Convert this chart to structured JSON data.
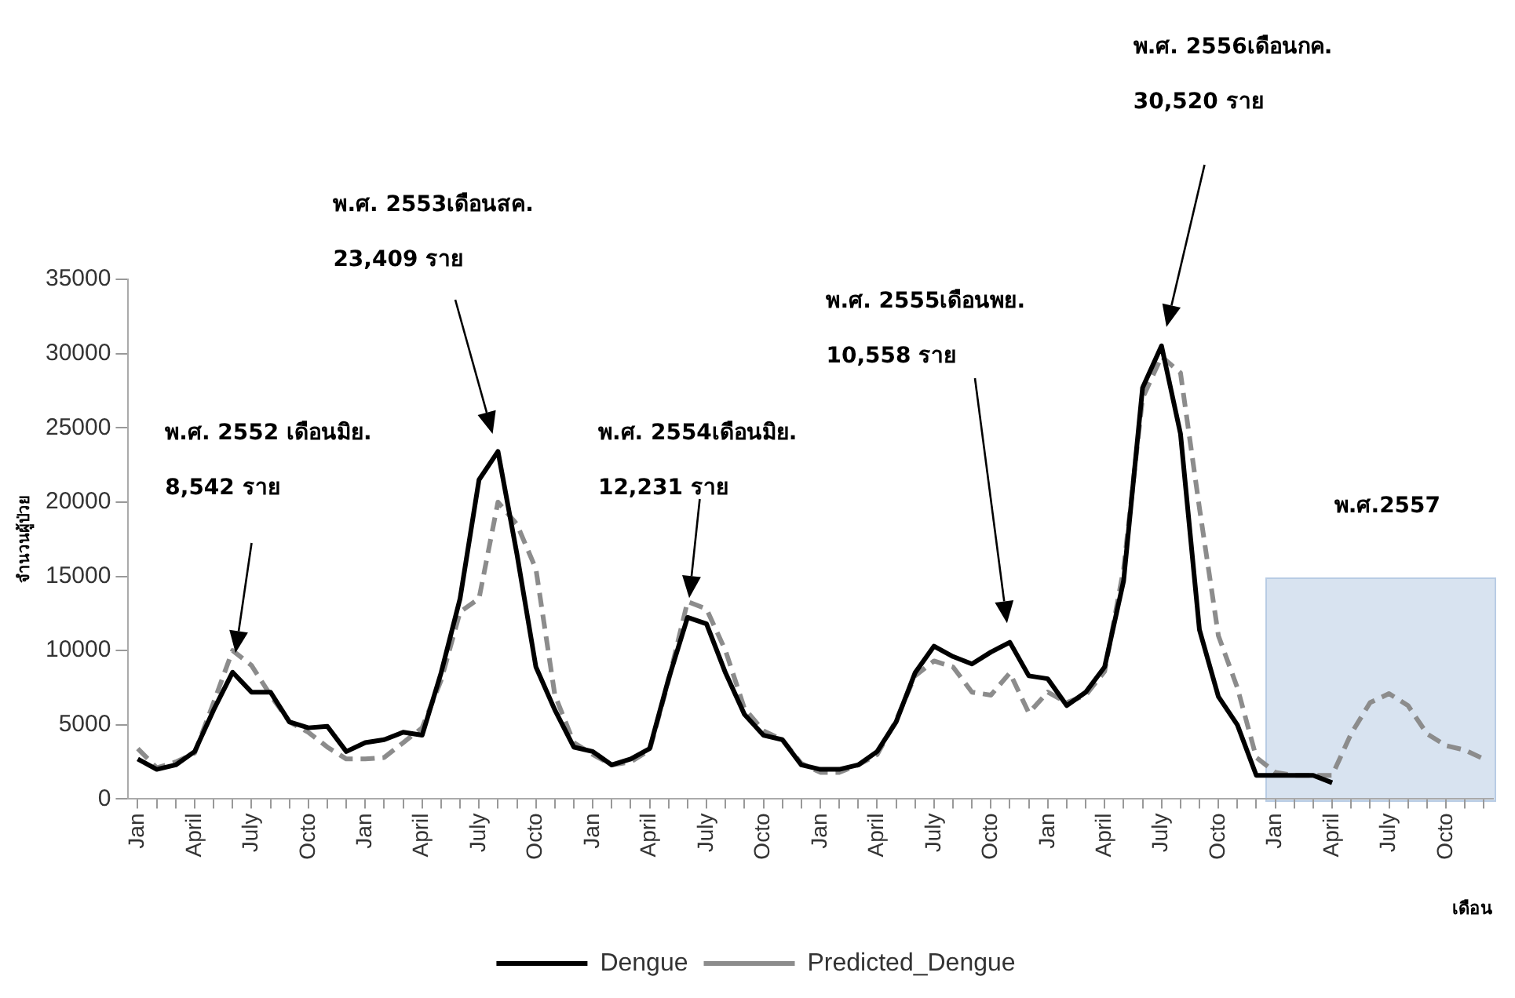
{
  "chart_data": {
    "type": "line",
    "ylabel": "จำนวนผู้ป่วย",
    "xlabel": "เดือน",
    "categories": [
      "Jan",
      null,
      null,
      "April",
      null,
      null,
      "July",
      null,
      null,
      "Octo",
      null,
      null,
      "Jan",
      null,
      null,
      "April",
      null,
      null,
      "July",
      null,
      null,
      "Octo",
      null,
      null,
      "Jan",
      null,
      null,
      "April",
      null,
      null,
      "July",
      null,
      null,
      "Octo",
      null,
      null,
      "Jan",
      null,
      null,
      "April",
      null,
      null,
      "July",
      null,
      null,
      "Octo",
      null,
      null,
      "Jan",
      null,
      null,
      "April",
      null,
      null,
      "July",
      null,
      null,
      "Octo",
      null,
      null,
      "Jan",
      null,
      null,
      "April",
      null,
      null,
      "July",
      null,
      null,
      "Octo",
      null,
      null
    ],
    "series": [
      {
        "name": "Dengue",
        "color": "#000000",
        "line_style": "solid",
        "values": [
          2700,
          2000,
          2300,
          3200,
          6000,
          8542,
          7200,
          7200,
          5200,
          4800,
          4900,
          3200,
          3800,
          4000,
          4500,
          4300,
          8500,
          13500,
          21500,
          23409,
          16500,
          8900,
          6000,
          3500,
          3200,
          2300,
          2700,
          3400,
          8100,
          12231,
          11800,
          8500,
          5700,
          4300,
          4000,
          2300,
          2000,
          2000,
          2300,
          3200,
          5200,
          8500,
          10300,
          9600,
          9100,
          9900,
          10558,
          8300,
          8100,
          6300,
          7200,
          8900,
          14700,
          27700,
          30520,
          24600,
          11400,
          6900,
          5000,
          1600,
          1600,
          1600,
          1600,
          1100,
          null,
          null,
          null,
          null,
          null,
          null,
          null,
          null
        ]
      },
      {
        "name": "Predicted_Dengue",
        "color": "#8c8c8c",
        "line_style": "dashed",
        "values": [
          3400,
          2100,
          2500,
          3100,
          6500,
          10000,
          9000,
          7000,
          5200,
          4500,
          3500,
          2700,
          2700,
          2800,
          3800,
          4800,
          8000,
          12600,
          13500,
          20000,
          18500,
          15500,
          7000,
          3800,
          3000,
          2300,
          2500,
          3300,
          8000,
          13300,
          12800,
          10000,
          6100,
          4600,
          4000,
          2400,
          1800,
          1800,
          2300,
          3000,
          5300,
          8300,
          9300,
          8900,
          7200,
          7000,
          8500,
          5800,
          7200,
          6500,
          7000,
          8600,
          15500,
          27000,
          29800,
          28700,
          19600,
          11000,
          7500,
          2800,
          1800,
          1600,
          1600,
          1600,
          4400,
          6500,
          7100,
          6300,
          4400,
          3600,
          3300,
          2700
        ]
      }
    ],
    "ylim": [
      0,
      35000
    ],
    "yticks": [
      0,
      5000,
      10000,
      15000,
      20000,
      25000,
      30000,
      35000
    ],
    "grid": false,
    "legend": "bottom",
    "marker": "none",
    "annotations": [
      "พ.ศ. 2552 เดือนมิย.",
      "8,542 ราย",
      "พ.ศ. 2553เดือนสค.",
      "23,409 ราย",
      "พ.ศ. 2554เดือนมิย.",
      "12,231 ราย",
      "พ.ศ. 2555เดือนพย.",
      "10,558 ราย",
      "พ.ศ. 2556เดือนกค.",
      "30,520 ราย",
      "พ.ศ.2557"
    ]
  }
}
